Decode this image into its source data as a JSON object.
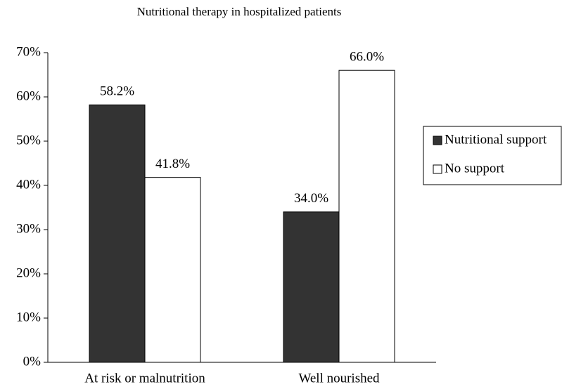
{
  "chart_data": {
    "type": "bar",
    "title": "Nutritional therapy in hospitalized patients",
    "categories": [
      "At risk or malnutrition",
      "Well nourished"
    ],
    "series": [
      {
        "name": "Nutritional support",
        "color": "#333333",
        "values": [
          58.2,
          34.0
        ],
        "value_labels": [
          "58.2%",
          "34.0%"
        ]
      },
      {
        "name": "No support",
        "color": "#ffffff",
        "values": [
          41.8,
          66.0
        ],
        "value_labels": [
          "41.8%",
          "66.0%"
        ]
      }
    ],
    "ylim": [
      0,
      70
    ],
    "yticks": [
      {
        "value": 0,
        "label": "0%"
      },
      {
        "value": 10,
        "label": "10%"
      },
      {
        "value": 20,
        "label": "20%"
      },
      {
        "value": 30,
        "label": "30%"
      },
      {
        "value": 40,
        "label": "40%"
      },
      {
        "value": 50,
        "label": "50%"
      },
      {
        "value": 60,
        "label": "60%"
      },
      {
        "value": 70,
        "label": "70%"
      }
    ],
    "grid": false,
    "legend": "right"
  }
}
